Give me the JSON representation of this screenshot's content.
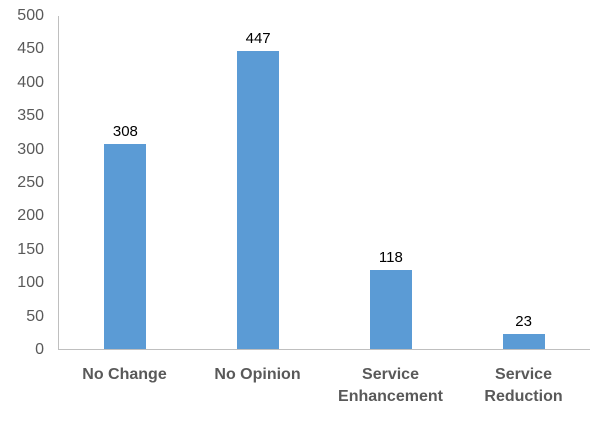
{
  "chart_data": {
    "type": "bar",
    "title": "",
    "xlabel": "",
    "ylabel": "",
    "categories": [
      "No Change",
      "No Opinion",
      "Service Enhancement",
      "Service Reduction"
    ],
    "values": [
      308,
      447,
      118,
      23
    ],
    "ylim": [
      0,
      500
    ],
    "ytick_step": 50,
    "grid": false,
    "legend_position": "none",
    "bar_color": "#5b9bd5",
    "axis_line_color": "#bfbfbf",
    "tick_label_color": "#595959",
    "category_label_color": "#595959",
    "data_label_color": "#000000"
  }
}
